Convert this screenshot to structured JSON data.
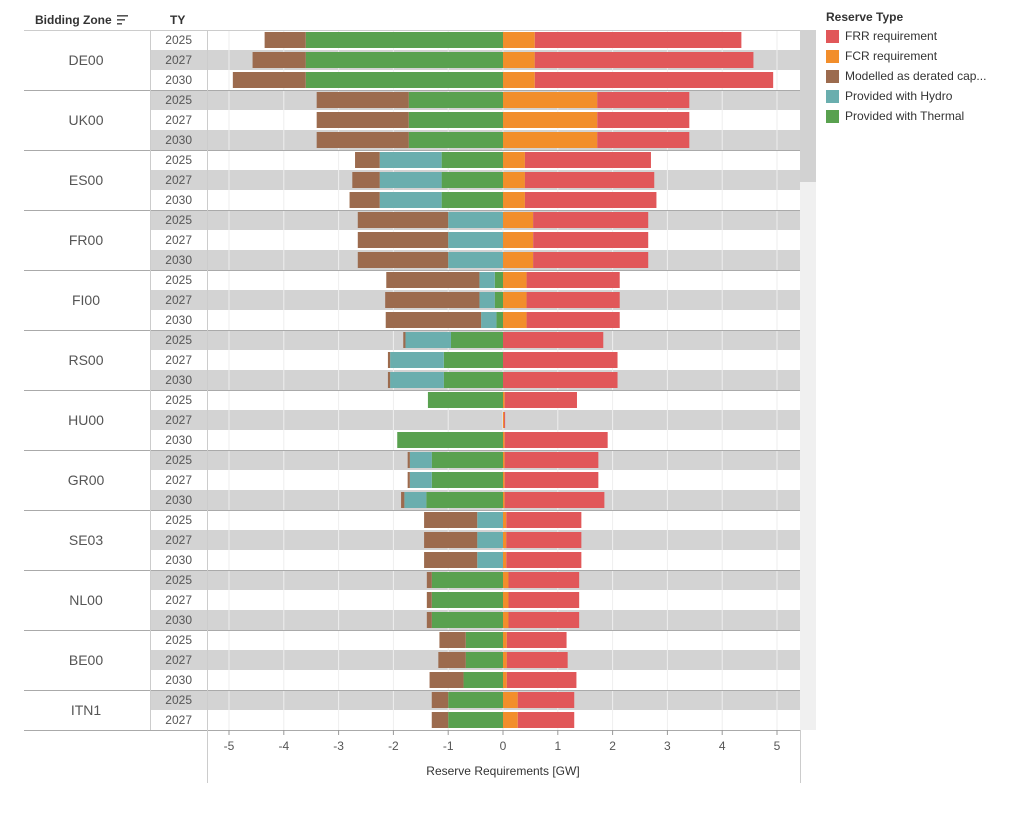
{
  "header": {
    "zone_label": "Bidding Zone",
    "ty_label": "TY",
    "sort_icon": "sort-icon"
  },
  "legend": {
    "title": "Reserve Type",
    "items": [
      {
        "label": "FRR requirement",
        "color": "#e15759"
      },
      {
        "label": "FCR requirement",
        "color": "#f28e2b"
      },
      {
        "label": "Modelled as derated cap...",
        "color": "#9c6b4e"
      },
      {
        "label": "Provided with Hydro",
        "color": "#6aaeae"
      },
      {
        "label": "Provided with Thermal",
        "color": "#59a14f"
      }
    ]
  },
  "chart_data": {
    "type": "bar",
    "orientation": "horizontal-diverging",
    "xlabel": "Reserve Requirements [GW]",
    "xlim": [
      -5.5,
      5.4
    ],
    "xticks": [
      -5,
      -4,
      -3,
      -2,
      -1,
      0,
      1,
      2,
      3,
      4,
      5
    ],
    "series_order_negative": [
      "Provided with Thermal",
      "Provided with Hydro",
      "Modelled as derated cap..."
    ],
    "series_order_positive": [
      "FCR requirement",
      "FRR requirement"
    ],
    "groups": [
      {
        "zone": "DE00",
        "rows": [
          {
            "ty": "2025",
            "thermal": 3.6,
            "hydro": 0,
            "derated": 0.75,
            "fcr": 0.58,
            "frr": 3.77
          },
          {
            "ty": "2027",
            "thermal": 3.6,
            "hydro": 0,
            "derated": 0.97,
            "fcr": 0.58,
            "frr": 3.99
          },
          {
            "ty": "2030",
            "thermal": 3.6,
            "hydro": 0,
            "derated": 1.33,
            "fcr": 0.58,
            "frr": 4.35
          }
        ]
      },
      {
        "zone": "UK00",
        "rows": [
          {
            "ty": "2025",
            "thermal": 1.72,
            "hydro": 0,
            "derated": 1.68,
            "fcr": 1.72,
            "frr": 1.68
          },
          {
            "ty": "2027",
            "thermal": 1.72,
            "hydro": 0,
            "derated": 1.68,
            "fcr": 1.72,
            "frr": 1.68
          },
          {
            "ty": "2030",
            "thermal": 1.72,
            "hydro": 0,
            "derated": 1.68,
            "fcr": 1.72,
            "frr": 1.68
          }
        ]
      },
      {
        "zone": "ES00",
        "rows": [
          {
            "ty": "2025",
            "thermal": 1.12,
            "hydro": 1.13,
            "derated": 0.45,
            "fcr": 0.4,
            "frr": 2.3
          },
          {
            "ty": "2027",
            "thermal": 1.12,
            "hydro": 1.13,
            "derated": 0.5,
            "fcr": 0.4,
            "frr": 2.36
          },
          {
            "ty": "2030",
            "thermal": 1.12,
            "hydro": 1.13,
            "derated": 0.55,
            "fcr": 0.4,
            "frr": 2.4
          }
        ]
      },
      {
        "zone": "FR00",
        "rows": [
          {
            "ty": "2025",
            "thermal": 0,
            "hydro": 1.0,
            "derated": 1.65,
            "fcr": 0.55,
            "frr": 2.1
          },
          {
            "ty": "2027",
            "thermal": 0,
            "hydro": 1.0,
            "derated": 1.65,
            "fcr": 0.55,
            "frr": 2.1
          },
          {
            "ty": "2030",
            "thermal": 0,
            "hydro": 1.0,
            "derated": 1.65,
            "fcr": 0.55,
            "frr": 2.1
          }
        ]
      },
      {
        "zone": "FI00",
        "rows": [
          {
            "ty": "2025",
            "thermal": 0.15,
            "hydro": 0.28,
            "derated": 1.7,
            "fcr": 0.43,
            "frr": 1.7
          },
          {
            "ty": "2027",
            "thermal": 0.15,
            "hydro": 0.28,
            "derated": 1.72,
            "fcr": 0.43,
            "frr": 1.7
          },
          {
            "ty": "2030",
            "thermal": 0.12,
            "hydro": 0.28,
            "derated": 1.74,
            "fcr": 0.43,
            "frr": 1.7
          }
        ]
      },
      {
        "zone": "RS00",
        "rows": [
          {
            "ty": "2025",
            "thermal": 0.95,
            "hydro": 0.83,
            "derated": 0.04,
            "fcr": 0,
            "frr": 1.83
          },
          {
            "ty": "2027",
            "thermal": 1.08,
            "hydro": 0.98,
            "derated": 0.04,
            "fcr": 0,
            "frr": 2.09
          },
          {
            "ty": "2030",
            "thermal": 1.08,
            "hydro": 0.98,
            "derated": 0.04,
            "fcr": 0,
            "frr": 2.09
          }
        ]
      },
      {
        "zone": "HU00",
        "rows": [
          {
            "ty": "2025",
            "thermal": 1.37,
            "hydro": 0,
            "derated": 0,
            "fcr": 0.03,
            "frr": 1.32
          },
          {
            "ty": "2027",
            "thermal": 0,
            "hydro": 0,
            "derated": 0,
            "fcr": 0.02,
            "frr": 0.01
          },
          {
            "ty": "2030",
            "thermal": 1.93,
            "hydro": 0,
            "derated": 0,
            "fcr": 0.03,
            "frr": 1.88
          }
        ]
      },
      {
        "zone": "GR00",
        "rows": [
          {
            "ty": "2025",
            "thermal": 1.3,
            "hydro": 0.4,
            "derated": 0.04,
            "fcr": 0.03,
            "frr": 1.71
          },
          {
            "ty": "2027",
            "thermal": 1.3,
            "hydro": 0.4,
            "derated": 0.04,
            "fcr": 0.03,
            "frr": 1.71
          },
          {
            "ty": "2030",
            "thermal": 1.4,
            "hydro": 0.4,
            "derated": 0.06,
            "fcr": 0.03,
            "frr": 1.82
          }
        ]
      },
      {
        "zone": "SE03",
        "rows": [
          {
            "ty": "2025",
            "thermal": 0,
            "hydro": 0.47,
            "derated": 0.97,
            "fcr": 0.06,
            "frr": 1.37
          },
          {
            "ty": "2027",
            "thermal": 0,
            "hydro": 0.47,
            "derated": 0.97,
            "fcr": 0.06,
            "frr": 1.37
          },
          {
            "ty": "2030",
            "thermal": 0,
            "hydro": 0.47,
            "derated": 0.97,
            "fcr": 0.06,
            "frr": 1.37
          }
        ]
      },
      {
        "zone": "NL00",
        "rows": [
          {
            "ty": "2025",
            "thermal": 1.3,
            "hydro": 0,
            "derated": 0.09,
            "fcr": 0.1,
            "frr": 1.29
          },
          {
            "ty": "2027",
            "thermal": 1.3,
            "hydro": 0,
            "derated": 0.09,
            "fcr": 0.1,
            "frr": 1.29
          },
          {
            "ty": "2030",
            "thermal": 1.3,
            "hydro": 0,
            "derated": 0.09,
            "fcr": 0.1,
            "frr": 1.29
          }
        ]
      },
      {
        "zone": "BE00",
        "rows": [
          {
            "ty": "2025",
            "thermal": 0.68,
            "hydro": 0,
            "derated": 0.48,
            "fcr": 0.07,
            "frr": 1.09
          },
          {
            "ty": "2027",
            "thermal": 0.68,
            "hydro": 0,
            "derated": 0.5,
            "fcr": 0.07,
            "frr": 1.11
          },
          {
            "ty": "2030",
            "thermal": 0.72,
            "hydro": 0,
            "derated": 0.62,
            "fcr": 0.07,
            "frr": 1.27
          }
        ]
      },
      {
        "zone": "ITN1",
        "rows": [
          {
            "ty": "2025",
            "thermal": 1.0,
            "hydro": 0,
            "derated": 0.3,
            "fcr": 0.27,
            "frr": 1.03
          },
          {
            "ty": "2027",
            "thermal": 1.0,
            "hydro": 0,
            "derated": 0.3,
            "fcr": 0.27,
            "frr": 1.03
          }
        ]
      }
    ]
  }
}
